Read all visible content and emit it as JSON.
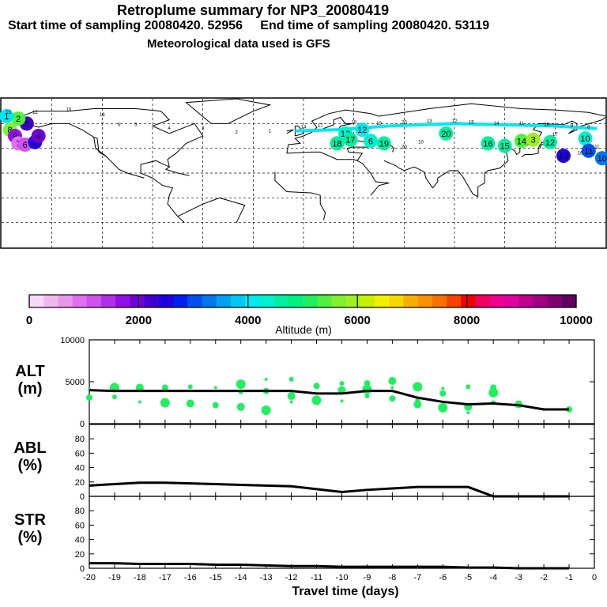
{
  "header": {
    "title": "Retroplume summary for NP3_20080419",
    "sampling_line": "Start time of sampling 20080420. 52956     End time of sampling 20080420. 53119",
    "met_line": "Meteorological data used is GFS"
  },
  "colorbar": {
    "label": "Altitude (m)",
    "ticks": [
      "0",
      "2000",
      "4000",
      "6000",
      "8000",
      "10000"
    ],
    "colors": [
      "#f8d8f8",
      "#f0b8f0",
      "#e898e8",
      "#e070f0",
      "#d050f0",
      "#b030e8",
      "#9010e8",
      "#7000d8",
      "#4000d0",
      "#2000e0",
      "#0020f0",
      "#0050f0",
      "#0078f0",
      "#00a0f0",
      "#00c8f0",
      "#00e8f0",
      "#00f0d0",
      "#00f0a0",
      "#00f080",
      "#20f060",
      "#50f040",
      "#80f030",
      "#a0f020",
      "#c8f000",
      "#f0f000",
      "#f8d800",
      "#f8b000",
      "#f89000",
      "#f87000",
      "#f84000",
      "#f00000",
      "#f00060",
      "#f00090",
      "#e000a0",
      "#c00090",
      "#a00080",
      "#800070",
      "#600060"
    ]
  },
  "map": {
    "labels": [
      "13",
      "12",
      "15",
      "16",
      "17",
      "18",
      "19",
      "20",
      "13",
      "12",
      "15",
      "14",
      "11",
      "10",
      "9",
      "8",
      "7",
      "6",
      "5",
      "4",
      "3",
      "2",
      "1",
      "14",
      "11",
      "16",
      "17",
      "20",
      "10"
    ],
    "markers": [
      {
        "lon": -175,
        "lat": 55,
        "label": "8",
        "color": "#80f030"
      },
      {
        "lon": -172,
        "lat": 50,
        "label": "9",
        "color": "#9010e8"
      },
      {
        "lon": -170,
        "lat": 44,
        "label": "7",
        "color": "#e070f0"
      },
      {
        "lon": -166,
        "lat": 43,
        "label": "6",
        "color": "#d050f0"
      },
      {
        "lon": -160,
        "lat": 45,
        "label": "5",
        "color": "#2000e0"
      },
      {
        "lon": -158,
        "lat": 50,
        "label": "4",
        "color": "#7000d8"
      },
      {
        "lon": -165,
        "lat": 60,
        "label": "3",
        "color": "#4000d0"
      },
      {
        "lon": -170,
        "lat": 64,
        "label": "2",
        "color": "#50f040"
      },
      {
        "lon": -177,
        "lat": 66,
        "label": "1",
        "color": "#00e8f0"
      },
      {
        "lon": 25,
        "lat": 52,
        "label": "13",
        "color": "#00f0d0"
      },
      {
        "lon": 35,
        "lat": 55,
        "label": "12",
        "color": "#00e8f0"
      },
      {
        "lon": 20,
        "lat": 44,
        "label": "18",
        "color": "#00f0a0"
      },
      {
        "lon": 28,
        "lat": 47,
        "label": "17",
        "color": "#00f0a0"
      },
      {
        "lon": 40,
        "lat": 46,
        "label": "6",
        "color": "#00f0d0"
      },
      {
        "lon": 48,
        "lat": 44,
        "label": "19",
        "color": "#00f0a0"
      },
      {
        "lon": 85,
        "lat": 52,
        "label": "20",
        "color": "#00f0a0"
      },
      {
        "lon": 110,
        "lat": 44,
        "label": "16",
        "color": "#00f0a0"
      },
      {
        "lon": 120,
        "lat": 42,
        "label": "15",
        "color": "#00f0a0"
      },
      {
        "lon": 130,
        "lat": 46,
        "label": "14",
        "color": "#50f040"
      },
      {
        "lon": 137,
        "lat": 47,
        "label": "3",
        "color": "#a0f020"
      },
      {
        "lon": 147,
        "lat": 45,
        "label": "12",
        "color": "#00f0a0"
      },
      {
        "lon": 168,
        "lat": 48,
        "label": "10",
        "color": "#00f0d0"
      },
      {
        "lon": 155,
        "lat": 34,
        "label": "13",
        "color": "#2000e0"
      },
      {
        "lon": 170,
        "lat": 38,
        "label": "11",
        "color": "#0050f0"
      },
      {
        "lon": 178,
        "lat": 32,
        "label": "10",
        "color": "#0078f0"
      }
    ]
  },
  "chart_data": [
    {
      "type": "line",
      "panel": "ALT",
      "ylabel": "ALT\n(m)",
      "ylim": [
        0,
        10000
      ],
      "yticks": [
        "10000",
        "5000",
        "0"
      ],
      "x": [
        -20,
        -19,
        -18,
        -17,
        -16,
        -15,
        -14,
        -13,
        -12,
        -11,
        -10,
        -9,
        -8,
        -7,
        -6,
        -5,
        -4,
        -3,
        -2,
        -1
      ],
      "values": [
        4000,
        3900,
        3900,
        3900,
        3900,
        3900,
        3900,
        3900,
        3900,
        3600,
        3600,
        3900,
        3900,
        3100,
        2600,
        2300,
        2400,
        2200,
        1700,
        1700
      ],
      "scatter": [
        {
          "x": -20,
          "y": 4100
        },
        {
          "x": -20,
          "y": 3100
        },
        {
          "x": -19,
          "y": 4300
        },
        {
          "x": -19,
          "y": 3200
        },
        {
          "x": -18,
          "y": 4300
        },
        {
          "x": -18,
          "y": 2600
        },
        {
          "x": -17,
          "y": 4300
        },
        {
          "x": -17,
          "y": 2500
        },
        {
          "x": -16,
          "y": 4400
        },
        {
          "x": -16,
          "y": 2400
        },
        {
          "x": -15,
          "y": 4300
        },
        {
          "x": -15,
          "y": 2200
        },
        {
          "x": -14,
          "y": 4700
        },
        {
          "x": -14,
          "y": 3800
        },
        {
          "x": -14,
          "y": 2000
        },
        {
          "x": -13,
          "y": 5300
        },
        {
          "x": -13,
          "y": 3900
        },
        {
          "x": -13,
          "y": 1600
        },
        {
          "x": -12,
          "y": 5300
        },
        {
          "x": -12,
          "y": 3300
        },
        {
          "x": -12,
          "y": 2600
        },
        {
          "x": -11,
          "y": 4500
        },
        {
          "x": -11,
          "y": 2800
        },
        {
          "x": -10,
          "y": 4800
        },
        {
          "x": -10,
          "y": 4000
        },
        {
          "x": -10,
          "y": 2700
        },
        {
          "x": -9,
          "y": 4800
        },
        {
          "x": -9,
          "y": 4100
        },
        {
          "x": -9,
          "y": 3300
        },
        {
          "x": -8,
          "y": 5100
        },
        {
          "x": -8,
          "y": 4300
        },
        {
          "x": -8,
          "y": 3000
        },
        {
          "x": -7,
          "y": 4400
        },
        {
          "x": -7,
          "y": 2800
        },
        {
          "x": -7,
          "y": 2300
        },
        {
          "x": -6,
          "y": 4200
        },
        {
          "x": -6,
          "y": 3600
        },
        {
          "x": -6,
          "y": 1900
        },
        {
          "x": -5,
          "y": 4400
        },
        {
          "x": -5,
          "y": 2000
        },
        {
          "x": -5,
          "y": 1300
        },
        {
          "x": -4,
          "y": 4300
        },
        {
          "x": -4,
          "y": 3700
        },
        {
          "x": -4,
          "y": 2500
        },
        {
          "x": -3,
          "y": 2300
        },
        {
          "x": -2,
          "y": 1700
        },
        {
          "x": -1,
          "y": 1700
        }
      ]
    },
    {
      "type": "line",
      "panel": "ABL",
      "ylabel": "ABL\n(%)",
      "ylim": [
        0,
        100
      ],
      "yticks": [
        "80",
        "60",
        "40",
        "20",
        "0"
      ],
      "x": [
        -20,
        -19,
        -18,
        -17,
        -16,
        -15,
        -14,
        -13,
        -12,
        -11,
        -10,
        -9,
        -8,
        -7,
        -6,
        -5,
        -4,
        -3,
        -2,
        -1
      ],
      "values": [
        15,
        17,
        19,
        19,
        18,
        17,
        16,
        15,
        14,
        10,
        6,
        9,
        11,
        13,
        13,
        13,
        0,
        0,
        0,
        0
      ]
    },
    {
      "type": "line",
      "panel": "STR",
      "ylabel": "STR\n(%)",
      "ylim": [
        0,
        100
      ],
      "yticks": [
        "80",
        "60",
        "40",
        "20",
        "0"
      ],
      "x": [
        -20,
        -19,
        -18,
        -17,
        -16,
        -15,
        -14,
        -13,
        -12,
        -11,
        -10,
        -9,
        -8,
        -7,
        -6,
        -5,
        -4,
        -3,
        -2,
        -1
      ],
      "values": [
        7,
        7,
        6,
        6,
        6,
        5,
        5,
        4,
        3,
        3,
        2,
        2,
        2,
        2,
        2,
        1,
        1,
        0,
        0,
        0
      ],
      "xlabel": "Travel time (days)",
      "xticks": [
        "-20",
        "-19",
        "-18",
        "-17",
        "-16",
        "-15",
        "-14",
        "-13",
        "-12",
        "-11",
        "-10",
        "-9",
        "-8",
        "-7",
        "-6",
        "-5",
        "-4",
        "-3",
        "-2",
        "-1",
        "0"
      ]
    }
  ]
}
